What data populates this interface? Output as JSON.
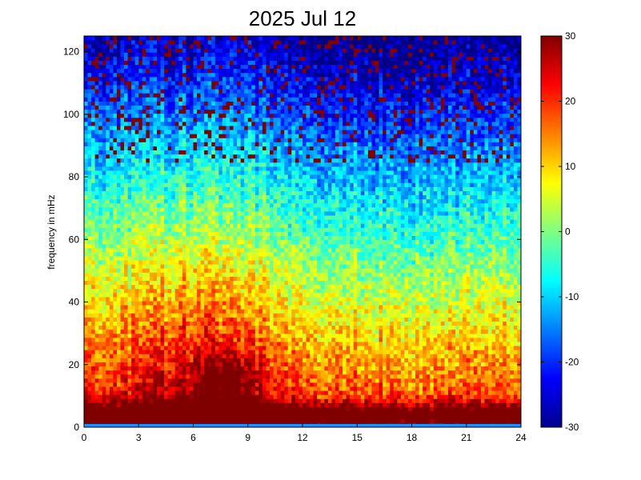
{
  "chart_data": {
    "type": "heatmap",
    "title": "2025 Jul 12",
    "xlabel": "",
    "ylabel": "frequency in mHz",
    "x_range": [
      0,
      24
    ],
    "y_range": [
      0,
      125
    ],
    "x_ticks": [
      0,
      3,
      6,
      9,
      12,
      15,
      18,
      21,
      24
    ],
    "y_ticks": [
      0,
      20,
      40,
      60,
      80,
      100,
      120
    ],
    "colorbar": {
      "range": [
        -30,
        30
      ],
      "ticks": [
        30,
        20,
        10,
        0,
        -10,
        -20,
        -30
      ],
      "colormap": "jet",
      "placement": "right"
    },
    "grid": false
  }
}
